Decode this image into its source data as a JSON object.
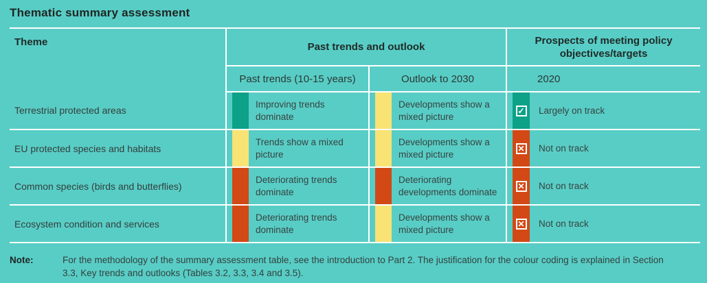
{
  "title": "Thematic summary assessment",
  "colors": {
    "background": "#58CDC6",
    "good": "#0DA187",
    "mixed": "#F8E374",
    "bad": "#D24915",
    "grid_line": "#FFFFFF"
  },
  "table": {
    "header": {
      "theme": "Theme",
      "past_trends_outlook": "Past trends and outlook",
      "prospects": "Prospects of meeting policy objectives/targets",
      "sub_past_trends": "Past trends (10-15 years)",
      "sub_outlook": "Outlook to 2030",
      "sub_prospects": "2020"
    },
    "rows": [
      {
        "theme": "Terrestrial protected areas",
        "past_trends": {
          "color": "#0DA187",
          "label": "Improving trends dominate"
        },
        "outlook": {
          "color": "#F8E374",
          "label": "Developments show a mixed picture"
        },
        "prospects": {
          "color": "#0DA187",
          "icon_name": "checkbox-checked-icon",
          "icon_glyph": "✓",
          "label": "Largely on track"
        }
      },
      {
        "theme": "EU protected species and habitats",
        "past_trends": {
          "color": "#F8E374",
          "label": "Trends show a mixed picture"
        },
        "outlook": {
          "color": "#F8E374",
          "label": "Developments show a mixed picture"
        },
        "prospects": {
          "color": "#D24915",
          "icon_name": "checkbox-crossed-icon",
          "icon_glyph": "✕",
          "label": "Not on track"
        }
      },
      {
        "theme": "Common species (birds and butterflies)",
        "past_trends": {
          "color": "#D24915",
          "label": "Deteriorating trends dominate"
        },
        "outlook": {
          "color": "#D24915",
          "label": "Deteriorating developments dominate"
        },
        "prospects": {
          "color": "#D24915",
          "icon_name": "checkbox-crossed-icon",
          "icon_glyph": "✕",
          "label": "Not on track"
        }
      },
      {
        "theme": "Ecosystem condition and services",
        "past_trends": {
          "color": "#D24915",
          "label": "Deteriorating trends dominate"
        },
        "outlook": {
          "color": "#F8E374",
          "label": "Developments show a mixed picture"
        },
        "prospects": {
          "color": "#D24915",
          "icon_name": "checkbox-crossed-icon",
          "icon_glyph": "✕",
          "label": "Not on track"
        }
      }
    ]
  },
  "note": {
    "label": "Note:",
    "text": "For the methodology of the summary assessment table, see the introduction to Part 2. The justification for the colour coding is explained in Section 3.3, Key trends and outlooks (Tables 3.2, 3.3, 3.4 and 3.5)."
  },
  "chart_data": {
    "type": "table",
    "title": "Thematic summary assessment",
    "column_groups": [
      "Theme",
      "Past trends and outlook",
      "Prospects of meeting policy objectives/targets"
    ],
    "columns": [
      "Theme",
      "Past trends (10-15 years)",
      "Outlook to 2030",
      "2020"
    ],
    "rows": [
      {
        "theme": "Terrestrial protected areas",
        "past_trends": {
          "status": "green",
          "label": "Improving trends dominate"
        },
        "outlook_2030": {
          "status": "yellow",
          "label": "Developments show a mixed picture"
        },
        "prospects_2020": {
          "status": "green",
          "symbol": "checked box",
          "label": "Largely on track"
        }
      },
      {
        "theme": "EU protected species and habitats",
        "past_trends": {
          "status": "yellow",
          "label": "Trends show a mixed picture"
        },
        "outlook_2030": {
          "status": "yellow",
          "label": "Developments show a mixed picture"
        },
        "prospects_2020": {
          "status": "red",
          "symbol": "crossed box",
          "label": "Not on track"
        }
      },
      {
        "theme": "Common species (birds and butterflies)",
        "past_trends": {
          "status": "red",
          "label": "Deteriorating trends dominate"
        },
        "outlook_2030": {
          "status": "red",
          "label": "Deteriorating developments dominate"
        },
        "prospects_2020": {
          "status": "red",
          "symbol": "crossed box",
          "label": "Not on track"
        }
      },
      {
        "theme": "Ecosystem condition and services",
        "past_trends": {
          "status": "red",
          "label": "Deteriorating trends dominate"
        },
        "outlook_2030": {
          "status": "yellow",
          "label": "Developments show a mixed picture"
        },
        "prospects_2020": {
          "status": "red",
          "symbol": "crossed box",
          "label": "Not on track"
        }
      }
    ],
    "color_coding": {
      "green": "#0DA187 improving / largely on track",
      "yellow": "#F8E374 mixed picture",
      "red": "#D24915 deteriorating / not on track"
    },
    "note": "For the methodology of the summary assessment table, see the introduction to Part 2. The justification for the colour coding is explained in Section 3.3, Key trends and outlooks (Tables 3.2, 3.3, 3.4 and 3.5)."
  }
}
